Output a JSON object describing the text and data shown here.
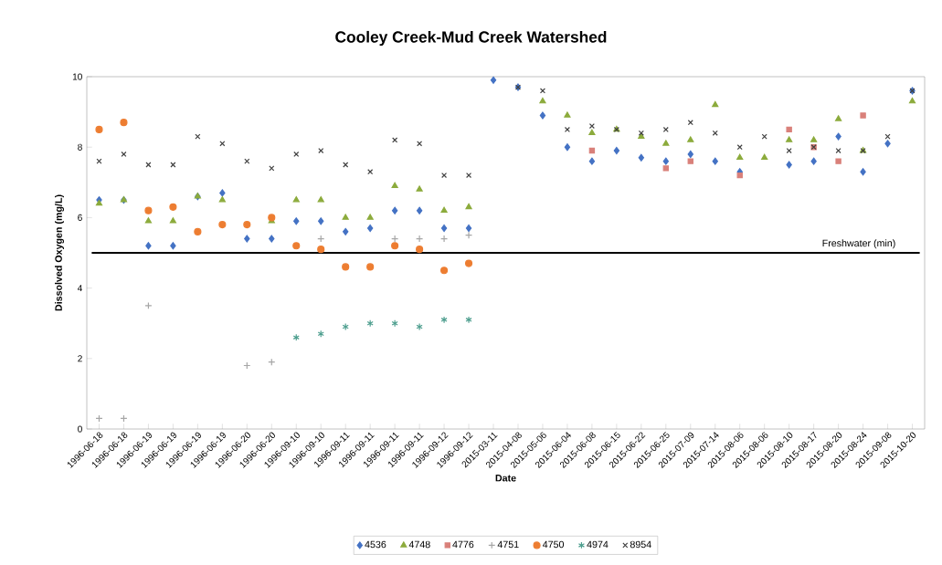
{
  "chart_data": {
    "type": "scatter",
    "title": "Cooley Creek-Mud Creek Watershed",
    "xlabel": "Date",
    "ylabel": "Dissolved Oxygen (mg/L)",
    "categories": [
      "1996-06-18",
      "1996-06-18",
      "1996-06-19",
      "1996-06-19",
      "1996-06-19",
      "1996-06-19",
      "1996-06-20",
      "1996-06-20",
      "1996-09-10",
      "1996-09-10",
      "1996-09-11",
      "1996-09-11",
      "1996-09-11",
      "1996-09-11",
      "1996-09-12",
      "1996-09-12",
      "2015-03-11",
      "2015-04-08",
      "2015-05-06",
      "2015-06-04",
      "2015-06-08",
      "2015-06-15",
      "2015-06-22",
      "2015-06-25",
      "2015-07-09",
      "2015-07-14",
      "2015-08-06",
      "2015-08-06",
      "2015-08-10",
      "2015-08-17",
      "2015-08-20",
      "2015-08-24",
      "2015-09-08",
      "2015-10-20"
    ],
    "ylim": [
      0,
      10
    ],
    "yticks": [
      0,
      2,
      4,
      6,
      8,
      10
    ],
    "legend": "bottom",
    "ref_lines": [
      {
        "axis": "y",
        "value": 5,
        "label": "Freshwater (min)",
        "color": "#000000"
      }
    ],
    "series": [
      {
        "name": "4536",
        "color": "#4472c4",
        "marker": "diamond",
        "values": [
          6.5,
          6.5,
          5.2,
          5.2,
          6.6,
          6.7,
          5.4,
          5.4,
          5.9,
          5.9,
          5.6,
          5.7,
          6.2,
          6.2,
          5.7,
          5.7,
          9.9,
          9.7,
          8.9,
          8.0,
          7.6,
          7.9,
          7.7,
          7.6,
          7.8,
          7.6,
          7.3,
          null,
          7.5,
          7.6,
          8.3,
          7.3,
          8.1,
          9.6
        ]
      },
      {
        "name": "4748",
        "color": "#8cab3c",
        "marker": "triangle",
        "values": [
          6.4,
          6.5,
          5.9,
          5.9,
          6.6,
          6.5,
          null,
          5.9,
          6.5,
          6.5,
          6.0,
          6.0,
          6.9,
          6.8,
          6.2,
          6.3,
          null,
          null,
          9.3,
          8.9,
          8.4,
          8.5,
          8.3,
          8.1,
          8.2,
          9.2,
          7.7,
          7.7,
          8.2,
          8.2,
          8.8,
          7.9,
          null,
          9.3
        ]
      },
      {
        "name": "4776",
        "color": "#d9807a",
        "marker": "square",
        "values": [
          null,
          null,
          null,
          null,
          null,
          null,
          null,
          null,
          null,
          null,
          null,
          null,
          null,
          null,
          null,
          null,
          null,
          null,
          null,
          null,
          7.9,
          null,
          null,
          7.4,
          7.6,
          null,
          7.2,
          null,
          8.5,
          8.0,
          7.6,
          8.9,
          null,
          null
        ]
      },
      {
        "name": "4751",
        "color": "#a6a6a6",
        "marker": "plus",
        "values": [
          0.3,
          0.3,
          3.5,
          null,
          null,
          null,
          1.8,
          1.9,
          null,
          5.4,
          null,
          null,
          5.4,
          5.4,
          5.4,
          5.5,
          null,
          null,
          null,
          null,
          null,
          null,
          null,
          null,
          null,
          null,
          null,
          null,
          null,
          null,
          null,
          null,
          null,
          null
        ]
      },
      {
        "name": "4750",
        "color": "#ed7d31",
        "marker": "circle",
        "values": [
          8.5,
          8.7,
          6.2,
          6.3,
          5.6,
          5.8,
          5.8,
          6.0,
          5.2,
          5.1,
          4.6,
          4.6,
          5.2,
          5.1,
          4.5,
          4.7,
          null,
          null,
          null,
          null,
          null,
          null,
          null,
          null,
          null,
          null,
          null,
          null,
          null,
          null,
          null,
          null,
          null,
          null
        ]
      },
      {
        "name": "4974",
        "color": "#4d9e8e",
        "marker": "cross",
        "values": [
          null,
          null,
          null,
          null,
          null,
          null,
          null,
          null,
          2.6,
          2.7,
          2.9,
          3.0,
          3.0,
          2.9,
          3.1,
          3.1,
          null,
          null,
          null,
          null,
          null,
          null,
          null,
          null,
          null,
          null,
          null,
          null,
          null,
          null,
          null,
          null,
          null,
          null
        ]
      },
      {
        "name": "8954",
        "color": "#404040",
        "marker": "cross",
        "values": [
          7.6,
          7.8,
          7.5,
          7.5,
          8.3,
          8.1,
          7.6,
          7.4,
          7.8,
          7.9,
          7.5,
          7.3,
          8.2,
          8.1,
          7.2,
          7.2,
          null,
          9.7,
          9.6,
          8.5,
          8.6,
          8.5,
          8.4,
          8.5,
          8.7,
          8.4,
          8.0,
          8.3,
          7.9,
          8.0,
          7.9,
          7.9,
          8.3,
          9.6
        ]
      }
    ]
  }
}
